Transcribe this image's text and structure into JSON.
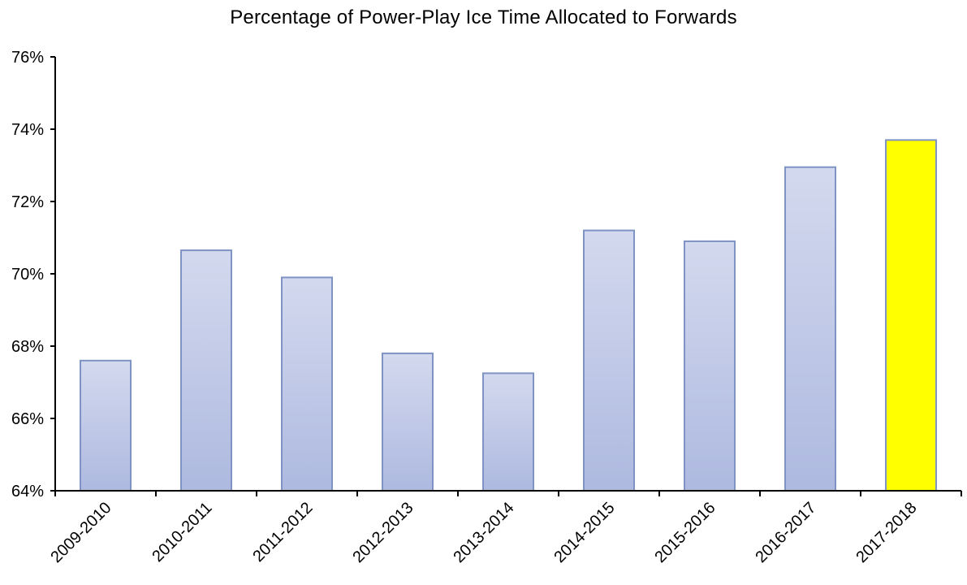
{
  "chart_data": {
    "type": "bar",
    "title": "Percentage of Power-Play Ice Time Allocated to Forwards",
    "xlabel": "",
    "ylabel": "",
    "categories": [
      "2009-2010",
      "2010-2011",
      "2011-2012",
      "2012-2013",
      "2013-2014",
      "2014-2015",
      "2015-2016",
      "2016-2017",
      "2017-2018"
    ],
    "values": [
      67.6,
      70.65,
      69.9,
      67.8,
      67.25,
      71.2,
      70.9,
      72.95,
      73.7
    ],
    "value_format": "percent",
    "ylim": [
      64,
      76
    ],
    "ytick_values": [
      64,
      66,
      68,
      70,
      72,
      74,
      76
    ],
    "ytick_labels": [
      "64%",
      "66%",
      "68%",
      "70%",
      "72%",
      "74%",
      "76%"
    ],
    "highlight_index": 8,
    "grid": false,
    "legend": "none",
    "colors": {
      "bar_fill_top": "#d3d9ee",
      "bar_fill_bottom": "#aeb9e0",
      "bar_stroke": "#7f93c4",
      "highlight_fill": "#ffff00",
      "highlight_stroke": "#7f93c4",
      "axis": "#000000"
    }
  }
}
